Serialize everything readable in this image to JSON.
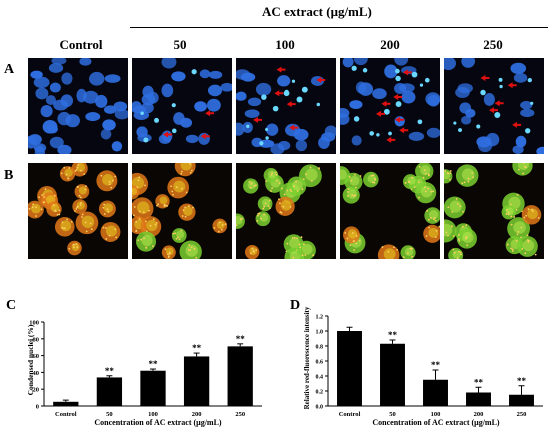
{
  "figure": {
    "header": "AC extract (μg/mL)",
    "columns": [
      "Control",
      "50",
      "100",
      "200",
      "250"
    ],
    "row_labels": [
      "A",
      "B"
    ],
    "panel_labels": [
      "C",
      "D"
    ]
  },
  "colors": {
    "nuclei_bg": "#05060f",
    "nuclei": "#2f6ee0",
    "condensed": "#6ad8ff",
    "arrow": "#e01010",
    "stain_bg": "#0a0603",
    "stain_orange": "#e07818",
    "stain_yellow": "#e8d020",
    "stain_green": "#7ad030"
  },
  "micrographs": [
    {
      "row": "A",
      "stain": "nuclei",
      "condition": "Control",
      "arrows": 0
    },
    {
      "row": "A",
      "stain": "nuclei",
      "condition": "50",
      "arrows": 3
    },
    {
      "row": "A",
      "stain": "nuclei",
      "condition": "100",
      "arrows": 6
    },
    {
      "row": "A",
      "stain": "nuclei",
      "condition": "200",
      "arrows": 7
    },
    {
      "row": "A",
      "stain": "nuclei",
      "condition": "250",
      "arrows": 5
    },
    {
      "row": "B",
      "stain": "red-green",
      "condition": "Control",
      "green_fraction": 0.0
    },
    {
      "row": "B",
      "stain": "red-green",
      "condition": "50",
      "green_fraction": 0.25
    },
    {
      "row": "B",
      "stain": "red-green",
      "condition": "100",
      "green_fraction": 0.45
    },
    {
      "row": "B",
      "stain": "red-green",
      "condition": "200",
      "green_fraction": 0.75
    },
    {
      "row": "B",
      "stain": "red-green",
      "condition": "250",
      "green_fraction": 0.85
    }
  ],
  "chart_data": [
    {
      "type": "bar",
      "panel": "C",
      "categories": [
        "Control",
        "50",
        "100",
        "200",
        "250"
      ],
      "values": [
        5,
        34,
        42,
        59,
        71
      ],
      "errors": [
        2,
        2,
        2,
        4,
        3
      ],
      "significance": [
        "",
        "**",
        "**",
        "**",
        "**"
      ],
      "xlabel": "Concentration of AC extract (μg/mL)",
      "ylabel": "Condensed nuclei (%)",
      "ylim": [
        0,
        100
      ],
      "yticks": [
        "0",
        "20",
        "40",
        "60",
        "80",
        "100"
      ],
      "grid": false,
      "bar_color": "#000000"
    },
    {
      "type": "bar",
      "panel": "D",
      "categories": [
        "Control",
        "50",
        "100",
        "200",
        "250"
      ],
      "values": [
        1.0,
        0.83,
        0.35,
        0.18,
        0.15
      ],
      "errors": [
        0.05,
        0.05,
        0.13,
        0.07,
        0.12
      ],
      "significance": [
        "",
        "**",
        "**",
        "**",
        "**"
      ],
      "xlabel": "Concentration of AC extract (μg/mL)",
      "ylabel": "Relative red-fluorescence intensity",
      "ylim": [
        0,
        1.2
      ],
      "yticks": [
        "0.0",
        "0.2",
        "0.4",
        "0.6",
        "0.8",
        "1.0",
        "1.2"
      ],
      "grid": false,
      "bar_color": "#000000"
    }
  ]
}
